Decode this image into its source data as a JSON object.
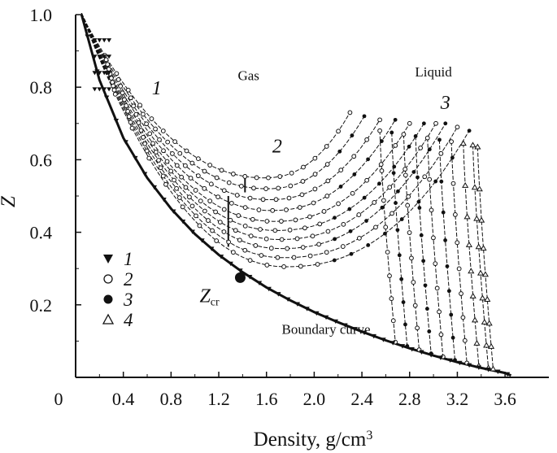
{
  "chart_data": {
    "type": "line",
    "title": "",
    "xlabel": "Density, g/cm",
    "xlabel_sup": "3",
    "ylabel": "Z",
    "xlim": [
      0,
      3.7
    ],
    "ylim": [
      0,
      1.0
    ],
    "x_origin_label": "0",
    "x_ticks": [
      {
        "value": 0.4,
        "label": "0.4"
      },
      {
        "value": 0.8,
        "label": "0.8"
      },
      {
        "value": 1.2,
        "label": "1.2"
      },
      {
        "value": 1.6,
        "label": "1.6"
      },
      {
        "value": 2.0,
        "label": "2.0"
      },
      {
        "value": 2.4,
        "label": "2.4"
      },
      {
        "value": 2.8,
        "label": "2.8"
      },
      {
        "value": 3.2,
        "label": "3.2"
      },
      {
        "value": 3.6,
        "label": "3.6"
      }
    ],
    "y_ticks": [
      {
        "value": 0.2,
        "label": "0.2"
      },
      {
        "value": 0.4,
        "label": "0.4"
      },
      {
        "value": 0.6,
        "label": "0.6"
      },
      {
        "value": 0.8,
        "label": "0.8"
      },
      {
        "value": 1.0,
        "label": "1.0"
      }
    ],
    "grid": false,
    "legend_position": "bottom-left",
    "legend": [
      {
        "marker": "triangle-down-filled",
        "label": "1"
      },
      {
        "marker": "circle-open",
        "label": "2"
      },
      {
        "marker": "circle-filled",
        "label": "3"
      },
      {
        "marker": "triangle-up-open",
        "label": "4"
      }
    ],
    "boundary_curve": {
      "label": "Boundary curve",
      "x": [
        0.05,
        0.2,
        0.4,
        0.6,
        0.8,
        1.0,
        1.2,
        1.4,
        1.6,
        1.8,
        2.0,
        2.2,
        2.4,
        2.6,
        2.8,
        3.0,
        3.2,
        3.4,
        3.6,
        3.65
      ],
      "z": [
        1.0,
        0.82,
        0.66,
        0.55,
        0.465,
        0.395,
        0.338,
        0.29,
        0.248,
        0.212,
        0.18,
        0.152,
        0.126,
        0.102,
        0.08,
        0.06,
        0.042,
        0.026,
        0.012,
        0.005
      ]
    },
    "isotherms": {
      "gas_region": [
        {
          "min_x": 1.58,
          "min_z": 0.55,
          "end_x": 2.3,
          "end_z": 0.73
        },
        {
          "min_x": 1.6,
          "min_z": 0.52,
          "end_x": 2.42,
          "end_z": 0.72
        },
        {
          "min_x": 1.62,
          "min_z": 0.49,
          "end_x": 2.55,
          "end_z": 0.71
        },
        {
          "min_x": 1.64,
          "min_z": 0.46,
          "end_x": 2.68,
          "end_z": 0.71
        },
        {
          "min_x": 1.66,
          "min_z": 0.43,
          "end_x": 2.8,
          "end_z": 0.7
        },
        {
          "min_x": 1.68,
          "min_z": 0.405,
          "end_x": 2.92,
          "end_z": 0.7
        },
        {
          "min_x": 1.7,
          "min_z": 0.38,
          "end_x": 3.02,
          "end_z": 0.7
        },
        {
          "min_x": 1.72,
          "min_z": 0.355,
          "end_x": 3.1,
          "end_z": 0.7
        },
        {
          "min_x": 1.74,
          "min_z": 0.33,
          "end_x": 3.2,
          "end_z": 0.69
        },
        {
          "min_x": 1.76,
          "min_z": 0.305,
          "end_x": 3.3,
          "end_z": 0.68
        }
      ],
      "liquid_region_end_x": [
        2.6,
        2.7,
        2.8,
        2.9,
        3.0,
        3.1,
        3.2,
        3.3,
        3.38,
        3.42
      ]
    },
    "critical_point": {
      "x": 1.38,
      "z": 0.275,
      "label": "Z",
      "label_sub": "cr"
    },
    "annotations": [
      {
        "text": "Gas",
        "x": 1.45,
        "z": 0.82
      },
      {
        "text": "Liquid",
        "x": 3.0,
        "z": 0.83
      }
    ],
    "curve_numbers": [
      {
        "text": "1",
        "x": 0.68,
        "z": 0.78
      },
      {
        "text": "2",
        "x": 1.69,
        "z": 0.62
      },
      {
        "text": "3",
        "x": 3.1,
        "z": 0.74
      }
    ]
  }
}
